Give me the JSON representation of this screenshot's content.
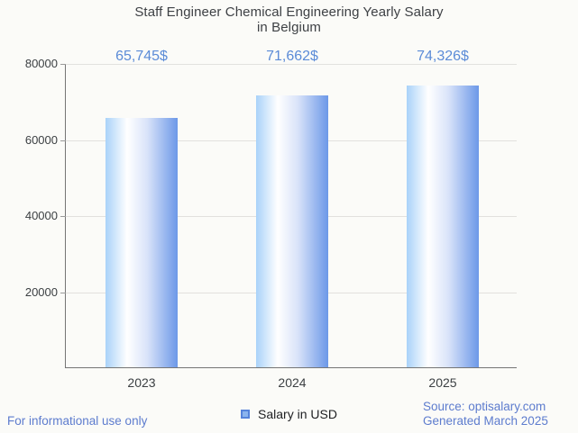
{
  "header": {
    "title_line1": "Staff Engineer Chemical Engineering Yearly Salary",
    "title_line2": "in Belgium"
  },
  "chart_data": {
    "type": "bar",
    "title": "Staff Engineer Chemical Engineering Yearly Salary in Belgium",
    "categories": [
      "2023",
      "2024",
      "2025"
    ],
    "series": [
      {
        "name": "Salary in USD",
        "values": [
          65745,
          71662,
          74326
        ]
      }
    ],
    "annotations": [
      "65,745$",
      "71,662$",
      "74,326$"
    ],
    "xlabel": "",
    "ylabel": "",
    "ylim": [
      0,
      80000
    ],
    "y_ticks": [
      20000,
      40000,
      60000,
      80000
    ],
    "grid": true,
    "legend_position": "bottom",
    "bar_gradient": [
      "#a9d2f9",
      "#ffffff",
      "#6c98e8"
    ]
  },
  "legend": {
    "label": "Salary in USD",
    "swatch_color": "#6d9eeb"
  },
  "footer": {
    "left": "For informational use only",
    "source_line1": "Source: optisalary.com",
    "source_line2": "Generated March 2025"
  },
  "colors": {
    "background": "#fbfbf8",
    "title": "#3e4145",
    "annotation": "#5b8bd7",
    "footer": "#5d7cce",
    "axis_label": "#3c4043",
    "gridline": "#e2e1de",
    "axis_line": "#757575"
  }
}
